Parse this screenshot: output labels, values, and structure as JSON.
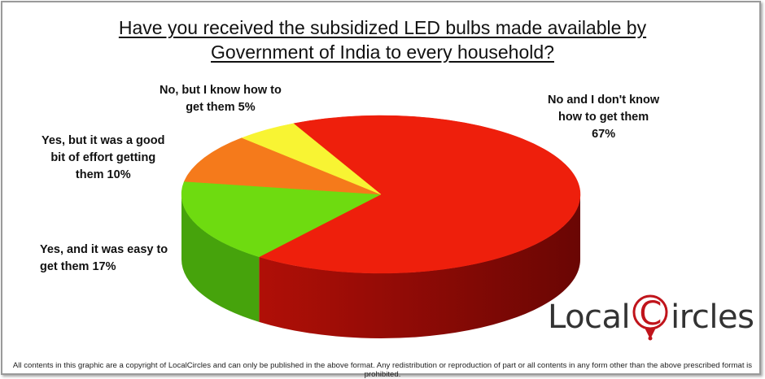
{
  "title": {
    "line1": "Have you received the subsidized LED bulbs made available by",
    "line2": "Government of India to every household?"
  },
  "chart_data": {
    "type": "pie",
    "style": "3d",
    "slices": [
      {
        "label": "No and I don't know how to get them",
        "value": 67,
        "color": "#ee1f0c",
        "side_color": "#b00f07"
      },
      {
        "label": "Yes, and it was easy to get them",
        "value": 17,
        "color": "#6edb10",
        "side_color": "#46a30c"
      },
      {
        "label": "Yes, but it was a good bit of effort getting them",
        "value": 10,
        "color": "#f57a1b",
        "side_color": "#c2580e"
      },
      {
        "label": "No, but I know how to get them",
        "value": 5,
        "color": "#f8f433",
        "side_color": "#c7c318"
      }
    ],
    "legend": "none"
  },
  "labels": {
    "no_dont_know": [
      "No and I don't know",
      "how to get them",
      "67%"
    ],
    "yes_easy": [
      "Yes, and it was easy to",
      "get them  17%"
    ],
    "yes_effort": [
      "Yes, but it was a good",
      "bit of effort getting",
      "them  10%"
    ],
    "no_know": [
      "No, but I know how to",
      "get them  5%"
    ]
  },
  "logo": {
    "left": "Local",
    "c": "C",
    "right": "ircles"
  },
  "footer": "All contents in this graphic are a copyright of LocalCircles and can only be published in the above format. Any redistribution or reproduction of part or all contents in any form other than the above prescribed format is prohibited.",
  "colors": {
    "red": "#ee1f0c",
    "green": "#6edb10",
    "orange": "#f57a1b",
    "yellow": "#f8f433",
    "brand": "#c0141b"
  }
}
